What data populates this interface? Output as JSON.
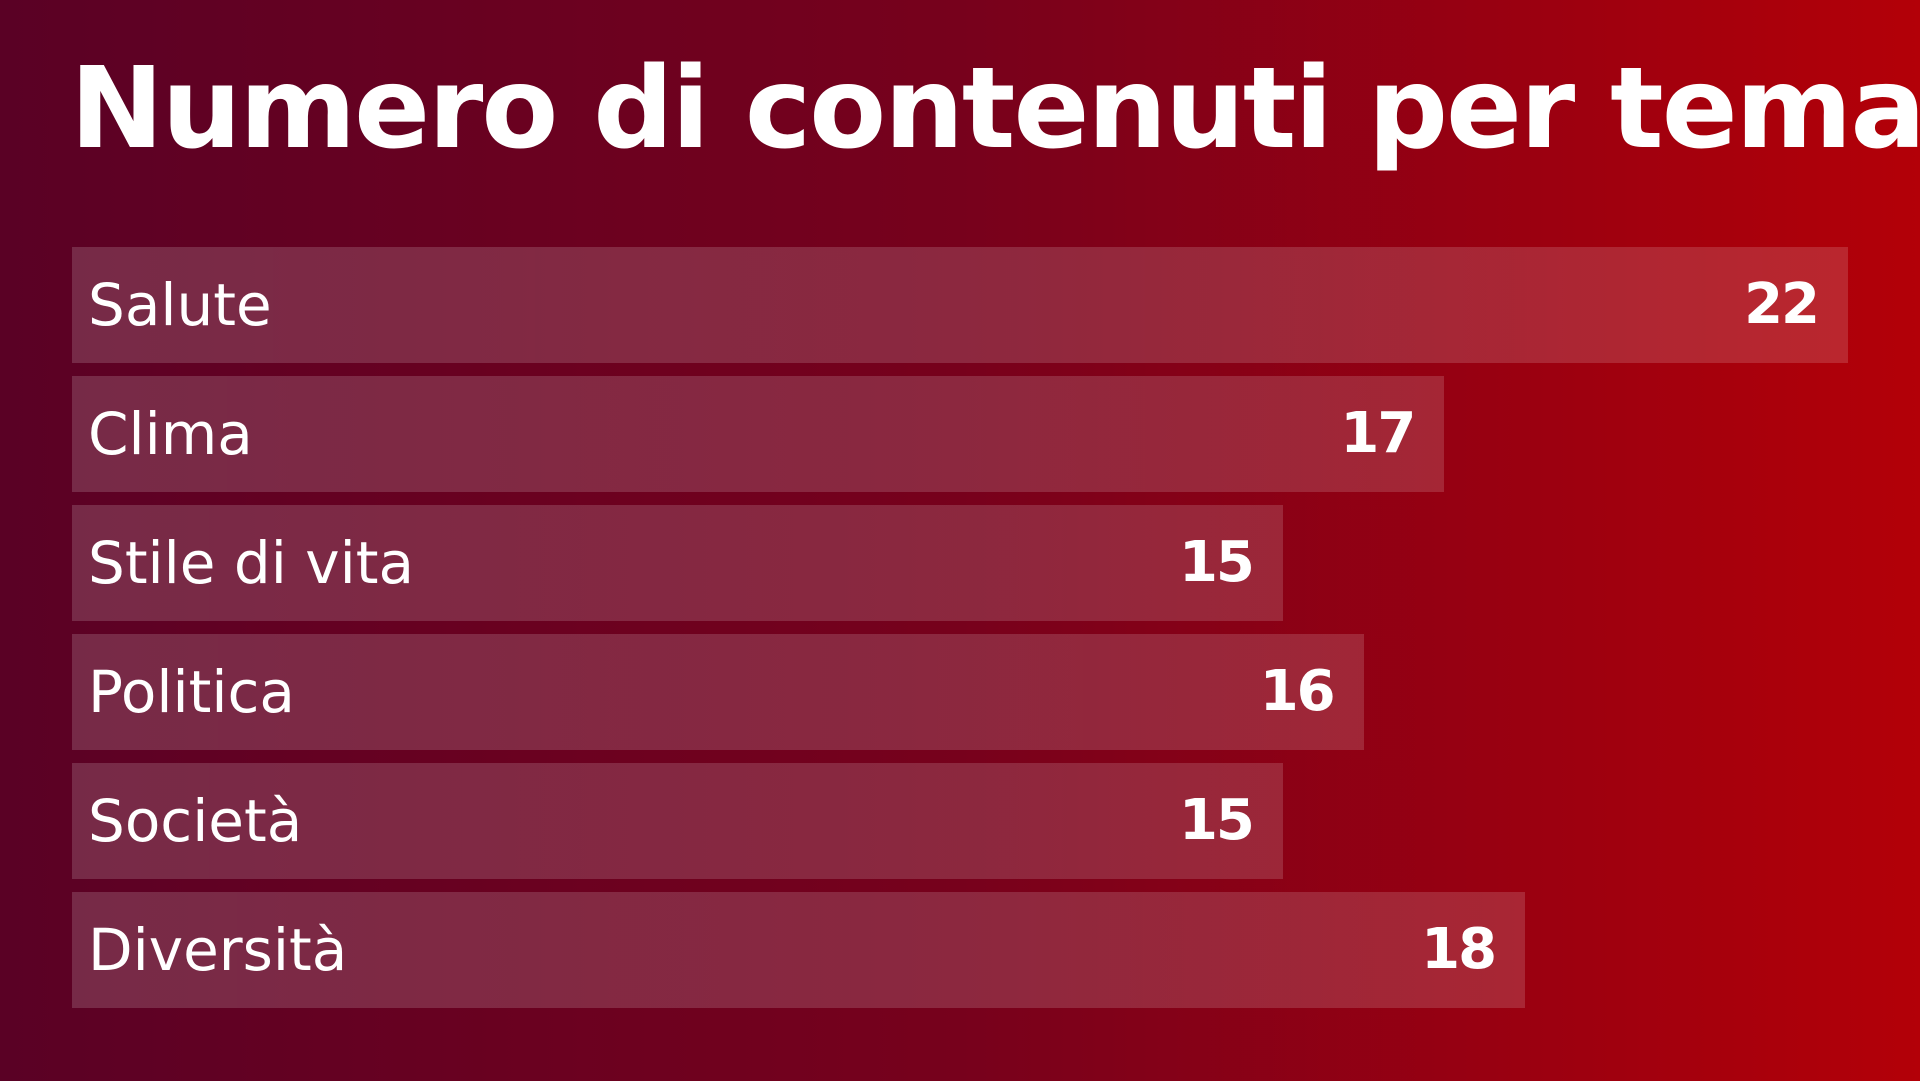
{
  "chart_data": {
    "type": "bar",
    "orientation": "horizontal",
    "title": "Numero di contenuti per tema",
    "categories": [
      "Salute",
      "Clima",
      "Stile di vita",
      "Politica",
      "Società",
      "Diversità"
    ],
    "values": [
      22,
      17,
      15,
      16,
      15,
      18
    ],
    "xlim": [
      0,
      22
    ],
    "grid": false,
    "data_labels": true,
    "colors": {
      "background_start": "#5a0125",
      "background_end": "#b30008",
      "bar_fill": "rgba(255,255,255,0.15)",
      "text": "#ffffff"
    }
  }
}
